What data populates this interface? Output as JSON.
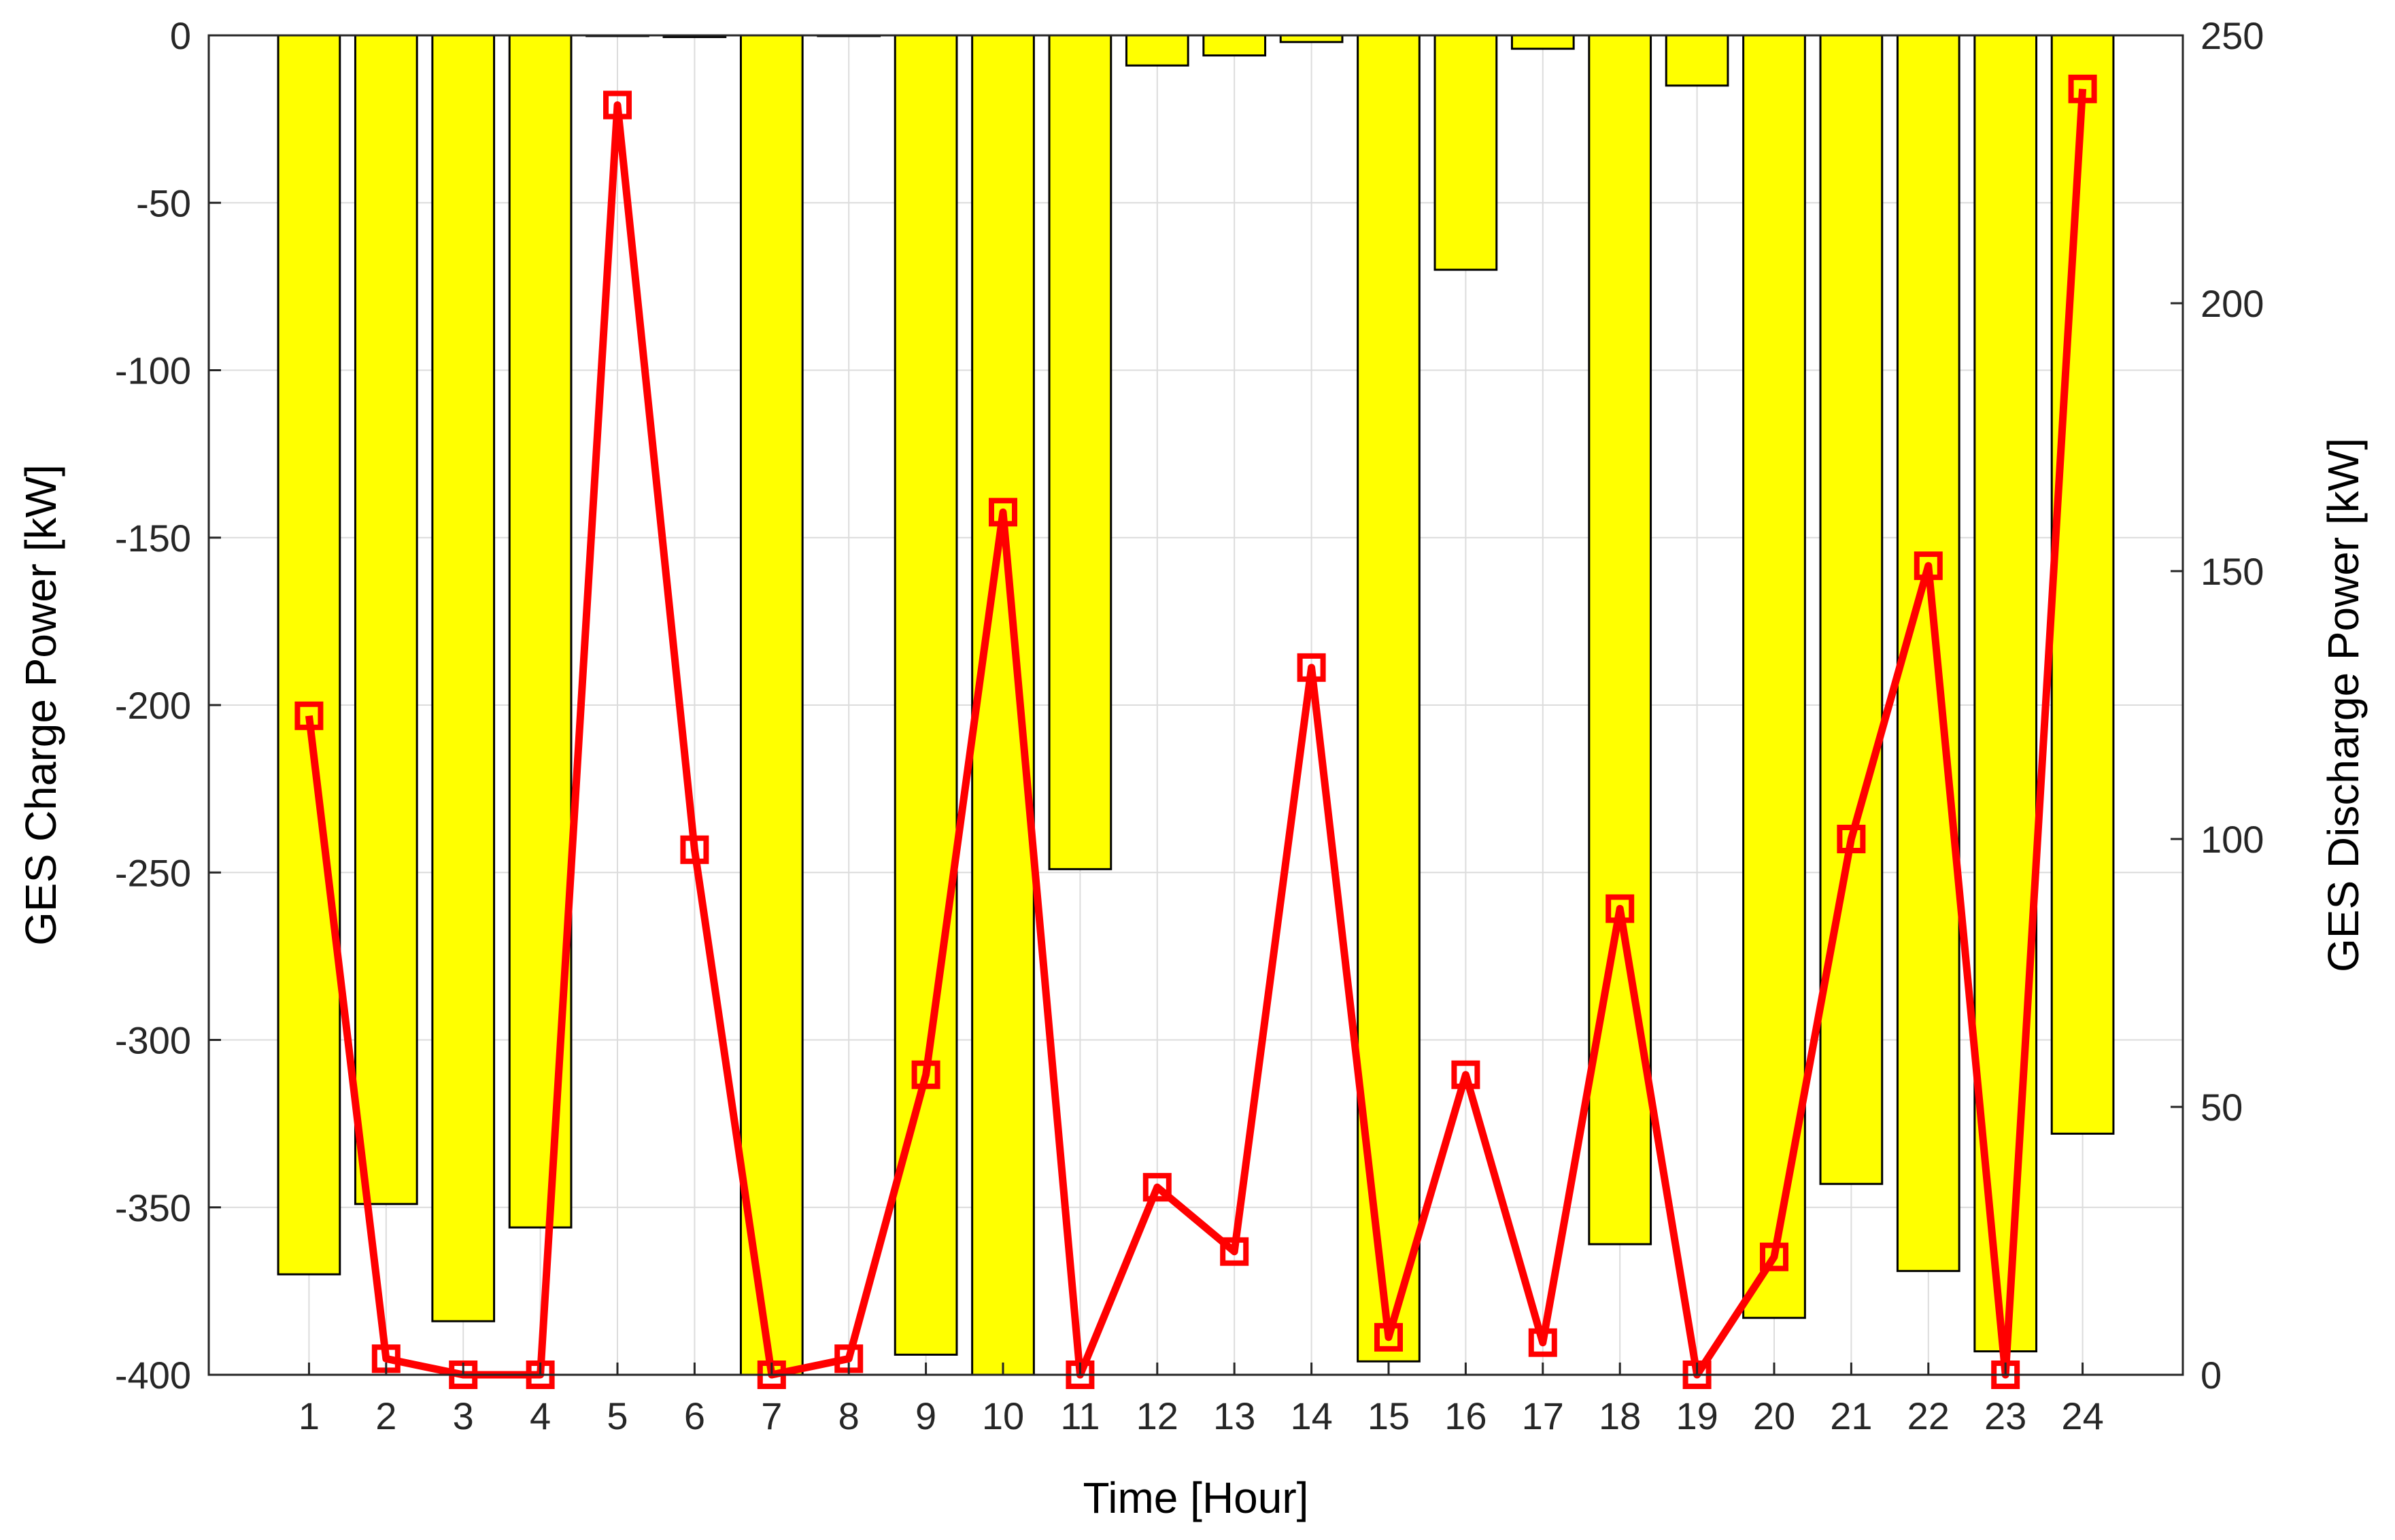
{
  "chart_data": {
    "type": "bar+line",
    "title": "",
    "xlabel": "Time [Hour]",
    "ylabel_left": "GES Charge Power [kW]",
    "ylabel_right": "GES Discharge Power [kW]",
    "categories": [
      "1",
      "2",
      "3",
      "4",
      "5",
      "6",
      "7",
      "8",
      "9",
      "10",
      "11",
      "12",
      "13",
      "14",
      "15",
      "16",
      "17",
      "18",
      "19",
      "20",
      "21",
      "22",
      "23",
      "24"
    ],
    "x_range": [
      -0.3,
      25.3
    ],
    "y_left_range": [
      -400,
      0
    ],
    "y_right_range": [
      0,
      250
    ],
    "y_left_ticks": [
      0,
      -50,
      -100,
      -150,
      -200,
      -250,
      -300,
      -350,
      -400
    ],
    "y_right_ticks": [
      0,
      50,
      100,
      150,
      200,
      250
    ],
    "grid": true,
    "series": [
      {
        "kind": "bar",
        "axis": "left",
        "color": "#ffff00",
        "edge_color": "#000000",
        "values": [
          -370,
          -349,
          -384,
          -356,
          0,
          -0.5,
          -400,
          0,
          -394,
          -400,
          -249,
          -9,
          -6,
          -2,
          -396,
          -70,
          -4,
          -361,
          -15,
          -383,
          -343,
          -369,
          -393,
          -328
        ]
      },
      {
        "kind": "line",
        "axis": "right",
        "color": "#ff0000",
        "marker": "square",
        "values": [
          123,
          3,
          0,
          0,
          237,
          98,
          0,
          3,
          56,
          161,
          0,
          35,
          23,
          132,
          7,
          56,
          6,
          87,
          0,
          22,
          100,
          151,
          0,
          240
        ]
      }
    ]
  }
}
